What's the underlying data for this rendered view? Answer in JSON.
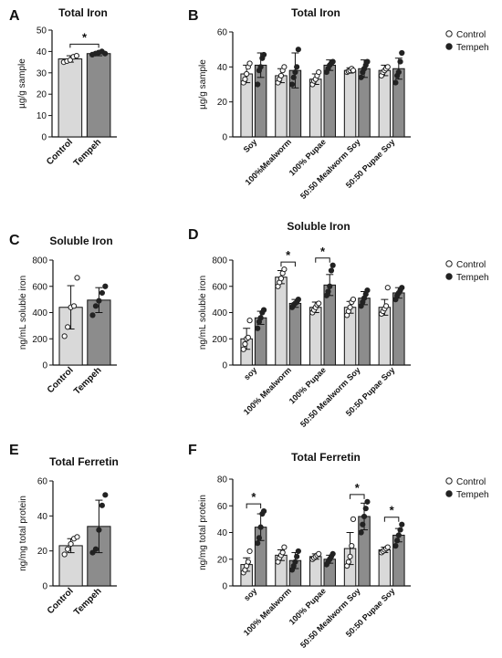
{
  "figure": {
    "colors": {
      "control_bar": "#d9d9d9",
      "tempeh_bar": "#8c8c8c",
      "marker": "#222222",
      "open_marker_fill": "#ffffff"
    }
  },
  "chart_data": [
    {
      "panel": "A",
      "type": "bar",
      "title": "Total Iron",
      "ylabel": "µg/g sample",
      "ylim": [
        0,
        50
      ],
      "yticks": [
        0,
        10,
        20,
        30,
        40,
        50
      ],
      "categories": [
        "Control",
        "Tempeh"
      ],
      "bars": [
        {
          "value": 36.5,
          "err": 1.5,
          "style": "control",
          "points": [
            35,
            35.5,
            36,
            37.5,
            38
          ],
          "open": true
        },
        {
          "value": 39.0,
          "err": 1.0,
          "style": "tempeh",
          "points": [
            38.5,
            39,
            39.5,
            40,
            39
          ],
          "open": false
        }
      ],
      "significance": [
        {
          "from": 0,
          "to": 1,
          "label": "*"
        }
      ]
    },
    {
      "panel": "B",
      "type": "bar",
      "title": "Total Iron",
      "ylabel": "µg/g sample",
      "ylim": [
        0,
        60
      ],
      "yticks": [
        0,
        20,
        40,
        60
      ],
      "categories": [
        "Soy",
        "100%Mealworm",
        "100% Pupae",
        "50:50 Mealworm Soy",
        "50:50 Pupae Soy"
      ],
      "legend": {
        "labels": [
          "Control",
          "Tempeh"
        ],
        "position": "top-right"
      },
      "series": [
        {
          "name": "Control",
          "style": "control",
          "open": true,
          "values": [
            36,
            35,
            33,
            38,
            38
          ],
          "err": [
            5,
            4,
            3,
            1.5,
            3
          ],
          "points": [
            [
              31,
              33,
              36,
              40,
              42
            ],
            [
              31,
              33,
              35,
              38,
              40
            ],
            [
              30,
              32,
              33,
              35,
              37
            ],
            [
              37,
              37.5,
              38,
              39,
              38
            ],
            [
              35,
              37,
              38,
              39,
              40
            ]
          ]
        },
        {
          "name": "Tempeh",
          "style": "tempeh",
          "open": false,
          "values": [
            41,
            38,
            41,
            39,
            39
          ],
          "err": [
            7,
            10,
            3,
            5,
            6
          ],
          "points": [
            [
              30,
              38,
              40,
              45,
              47
            ],
            [
              30,
              34,
              37,
              40,
              50
            ],
            [
              37,
              39,
              41,
              42,
              43
            ],
            [
              34,
              37,
              39,
              41,
              43
            ],
            [
              31,
              35,
              37,
              43,
              48
            ]
          ]
        }
      ]
    },
    {
      "panel": "C",
      "type": "bar",
      "title": "Soluble Iron",
      "ylabel": "ng/mL soluble iron",
      "ylim": [
        0,
        800
      ],
      "yticks": [
        0,
        200,
        400,
        600,
        800
      ],
      "categories": [
        "Control",
        "Tempeh"
      ],
      "bars": [
        {
          "value": 440,
          "err": 165,
          "style": "control",
          "points": [
            220,
            290,
            440,
            450,
            665
          ],
          "open": true
        },
        {
          "value": 495,
          "err": 95,
          "style": "tempeh",
          "points": [
            380,
            450,
            490,
            550,
            600
          ],
          "open": false
        }
      ],
      "significance": []
    },
    {
      "panel": "D",
      "type": "bar",
      "title": "Soluble Iron",
      "ylabel": "ng/mL soluble iron",
      "ylim": [
        0,
        800
      ],
      "yticks": [
        0,
        200,
        400,
        600,
        800
      ],
      "categories": [
        "soy",
        "100% Mealworm",
        "100% Pupae",
        "50:50 Mealworm Soy",
        "50:50 Pupae Soy"
      ],
      "legend": {
        "labels": [
          "Control",
          "Tempeh"
        ],
        "position": "top-right"
      },
      "series": [
        {
          "name": "Control",
          "style": "control",
          "open": true,
          "values": [
            200,
            670,
            440,
            440,
            440
          ],
          "err": [
            80,
            50,
            40,
            45,
            60
          ],
          "points": [
            [
              120,
              160,
              200,
              210,
              340
            ],
            [
              600,
              630,
              660,
              700,
              730
            ],
            [
              400,
              420,
              440,
              460,
              470
            ],
            [
              380,
              410,
              440,
              480,
              500
            ],
            [
              390,
              410,
              430,
              450,
              590
            ]
          ]
        },
        {
          "name": "Tempeh",
          "style": "tempeh",
          "open": false,
          "values": [
            360,
            470,
            610,
            510,
            550
          ],
          "err": [
            50,
            30,
            80,
            50,
            40
          ],
          "points": [
            [
              280,
              330,
              360,
              400,
              420
            ],
            [
              440,
              460,
              470,
              480,
              500
            ],
            [
              530,
              560,
              600,
              720,
              760
            ],
            [
              450,
              480,
              510,
              540,
              570
            ],
            [
              500,
              530,
              550,
              570,
              590
            ]
          ]
        }
      ],
      "significance": [
        {
          "group": 1,
          "label": "*"
        },
        {
          "group": 2,
          "label": "*"
        }
      ]
    },
    {
      "panel": "E",
      "type": "bar",
      "title": "Total Ferretin",
      "ylabel": "ng/mg total protein",
      "ylim": [
        0,
        60
      ],
      "yticks": [
        0,
        20,
        40,
        60
      ],
      "categories": [
        "Control",
        "Tempeh"
      ],
      "bars": [
        {
          "value": 23,
          "err": 4,
          "style": "control",
          "points": [
            18,
            21,
            24,
            27,
            28
          ],
          "open": true
        },
        {
          "value": 34,
          "err": 15,
          "style": "tempeh",
          "points": [
            19,
            21,
            32,
            46,
            52
          ],
          "open": false
        }
      ],
      "significance": []
    },
    {
      "panel": "F",
      "type": "bar",
      "title": "Total Ferretin",
      "ylabel": "ng/mg total protein",
      "ylim": [
        0,
        80
      ],
      "yticks": [
        0,
        20,
        40,
        60,
        80
      ],
      "categories": [
        "soy",
        "100% Mealworm",
        "100% Pupae",
        "50:50 Mealworm Soy",
        "50:50 Pupae Soy"
      ],
      "legend": {
        "labels": [
          "Control",
          "Tempeh"
        ],
        "position": "top-right"
      },
      "series": [
        {
          "name": "Control",
          "style": "control",
          "open": true,
          "values": [
            16,
            23,
            22,
            28,
            27
          ],
          "err": [
            5,
            4,
            2,
            12,
            2
          ],
          "points": [
            [
              10,
              12,
              15,
              18,
              26
            ],
            [
              18,
              21,
              23,
              25,
              29
            ],
            [
              20,
              21,
              22,
              23,
              24
            ],
            [
              15,
              18,
              22,
              30,
              50
            ],
            [
              25,
              26,
              27,
              28,
              29
            ]
          ]
        },
        {
          "name": "Tempeh",
          "style": "tempeh",
          "open": false,
          "values": [
            44,
            19,
            20,
            52,
            38
          ],
          "err": [
            10,
            6,
            3,
            10,
            5
          ],
          "points": [
            [
              32,
              36,
              44,
              54,
              56
            ],
            [
              12,
              15,
              18,
              22,
              26
            ],
            [
              16,
              18,
              20,
              22,
              24
            ],
            [
              40,
              46,
              52,
              58,
              63
            ],
            [
              30,
              34,
              38,
              42,
              46
            ]
          ]
        }
      ],
      "significance": [
        {
          "group": 0,
          "label": "*"
        },
        {
          "group": 3,
          "label": "*"
        },
        {
          "group": 4,
          "label": "*"
        }
      ]
    }
  ]
}
